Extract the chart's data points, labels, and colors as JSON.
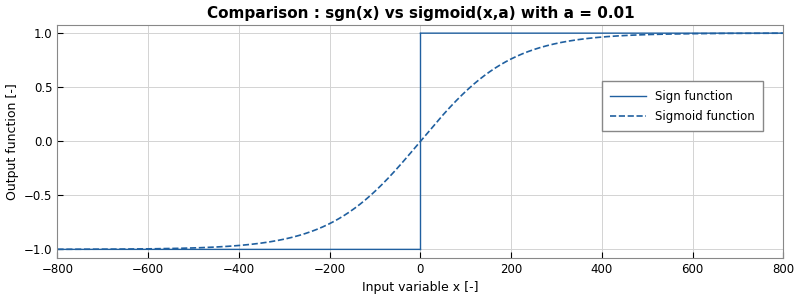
{
  "title": "Comparison : sgn(x) vs sigmoid(x,a) with a = 0.01",
  "xlabel": "Input variable x [-]",
  "ylabel": "Output function [-]",
  "xlim": [
    -800,
    800
  ],
  "ylim": [
    -1.08,
    1.08
  ],
  "x_ticks": [
    -800,
    -600,
    -400,
    -200,
    0,
    200,
    400,
    600,
    800
  ],
  "y_ticks": [
    -1,
    -0.5,
    0,
    0.5,
    1
  ],
  "a": 0.01,
  "line_color": "#2060A0",
  "legend_sign": "Sign function",
  "legend_sigmoid": "Sigmoid function",
  "background_color": "#ffffff",
  "grid_color": "#d3d3d3",
  "title_fontsize": 11,
  "axis_fontsize": 9,
  "tick_fontsize": 8.5,
  "legend_fontsize": 8.5,
  "figsize": [
    8.0,
    3.0
  ],
  "dpi": 100
}
